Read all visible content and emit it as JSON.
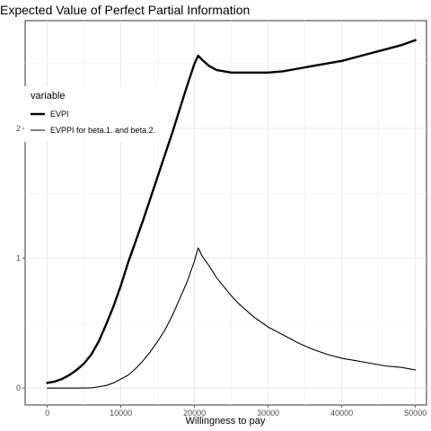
{
  "chart_data": {
    "type": "line",
    "title": "Expected Value of Perfect Partial Information",
    "xlabel": "Willingness to pay",
    "ylabel": "",
    "xlim": [
      -3000,
      51500
    ],
    "ylim": [
      -0.13,
      2.83
    ],
    "x_ticks": [
      0,
      10000,
      20000,
      30000,
      40000,
      50000
    ],
    "x_tick_labels": [
      "0",
      "10000",
      "20000",
      "30000",
      "40000",
      "50000"
    ],
    "y_ticks": [
      0,
      1,
      2
    ],
    "y_tick_labels": [
      "0",
      "1",
      "2"
    ],
    "grid": true,
    "legend": {
      "title": "variable",
      "position": "left"
    },
    "series": [
      {
        "name": "EVPI",
        "line_width": "thick",
        "color": "#000000",
        "x": [
          0,
          1000,
          2000,
          3000,
          4000,
          5000,
          6000,
          7000,
          8000,
          9000,
          10000,
          11000,
          12000,
          13000,
          14000,
          15000,
          16000,
          17000,
          18000,
          19000,
          20000,
          20500,
          21000,
          22000,
          23000,
          24000,
          25000,
          26000,
          28000,
          30000,
          32000,
          34000,
          36000,
          38000,
          40000,
          42000,
          44000,
          46000,
          48000,
          50000
        ],
        "values": [
          0.04,
          0.05,
          0.07,
          0.1,
          0.14,
          0.19,
          0.26,
          0.36,
          0.49,
          0.63,
          0.79,
          0.97,
          1.13,
          1.29,
          1.46,
          1.63,
          1.8,
          1.97,
          2.15,
          2.33,
          2.5,
          2.56,
          2.53,
          2.48,
          2.45,
          2.44,
          2.43,
          2.43,
          2.43,
          2.43,
          2.44,
          2.46,
          2.48,
          2.5,
          2.52,
          2.55,
          2.58,
          2.61,
          2.64,
          2.68
        ]
      },
      {
        "name": "EVPPI for beta.1. and beta.2.",
        "line_width": "thin",
        "color": "#000000",
        "x": [
          0,
          2000,
          4000,
          6000,
          7000,
          8000,
          9000,
          10000,
          11000,
          12000,
          13000,
          14000,
          15000,
          16000,
          17000,
          18000,
          19000,
          20000,
          20500,
          21000,
          22000,
          23000,
          24000,
          25000,
          26000,
          28000,
          30000,
          32000,
          34000,
          36000,
          38000,
          40000,
          42000,
          44000,
          46000,
          48000,
          50000
        ],
        "values": [
          0,
          0,
          0,
          0.002,
          0.01,
          0.02,
          0.04,
          0.07,
          0.1,
          0.15,
          0.21,
          0.28,
          0.36,
          0.45,
          0.56,
          0.69,
          0.82,
          0.98,
          1.08,
          1.02,
          0.94,
          0.85,
          0.78,
          0.71,
          0.65,
          0.55,
          0.47,
          0.41,
          0.35,
          0.3,
          0.26,
          0.23,
          0.21,
          0.19,
          0.17,
          0.16,
          0.14
        ]
      }
    ]
  }
}
